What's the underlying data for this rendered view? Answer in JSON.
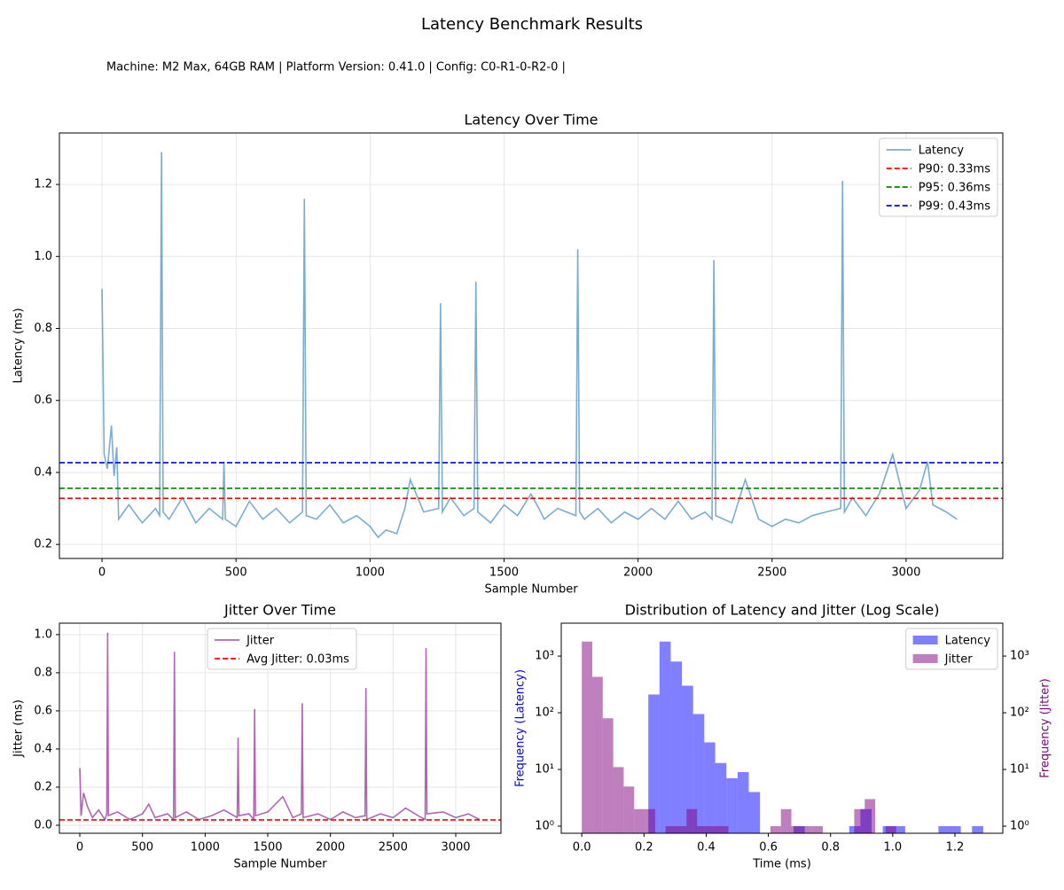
{
  "header": {
    "title": "Latency Benchmark Results",
    "subtitle": "Machine: M2 Max, 64GB RAM | Platform Version: 0.41.0 | Config: C0-R1-0-R2-0 |"
  },
  "chart_data": [
    {
      "type": "line",
      "title": "Latency Over Time",
      "xlabel": "Sample Number",
      "ylabel": "Latency (ms)",
      "x": [
        0,
        8,
        20,
        35,
        45,
        55,
        62,
        100,
        150,
        200,
        215,
        222,
        228,
        250,
        300,
        350,
        400,
        450,
        455,
        460,
        500,
        550,
        600,
        650,
        700,
        748,
        755,
        762,
        800,
        850,
        900,
        950,
        1000,
        1030,
        1060,
        1100,
        1130,
        1150,
        1200,
        1256,
        1263,
        1270,
        1300,
        1350,
        1388,
        1395,
        1402,
        1450,
        1500,
        1550,
        1600,
        1630,
        1650,
        1700,
        1768,
        1775,
        1782,
        1800,
        1850,
        1900,
        1950,
        2000,
        2050,
        2100,
        2150,
        2200,
        2250,
        2276,
        2283,
        2290,
        2350,
        2400,
        2450,
        2500,
        2550,
        2600,
        2650,
        2700,
        2756,
        2763,
        2770,
        2800,
        2850,
        2900,
        2950,
        3000,
        3050,
        3080,
        3100,
        3150,
        3190
      ],
      "series": [
        {
          "name": "Latency",
          "color": "#1f77b4",
          "alpha": 0.6,
          "values": [
            0.91,
            0.45,
            0.41,
            0.53,
            0.39,
            0.47,
            0.27,
            0.31,
            0.26,
            0.3,
            0.28,
            1.29,
            0.29,
            0.27,
            0.33,
            0.26,
            0.3,
            0.27,
            0.43,
            0.27,
            0.25,
            0.32,
            0.27,
            0.3,
            0.26,
            0.29,
            1.16,
            0.28,
            0.27,
            0.31,
            0.26,
            0.28,
            0.25,
            0.22,
            0.24,
            0.23,
            0.3,
            0.38,
            0.29,
            0.3,
            0.87,
            0.29,
            0.33,
            0.28,
            0.3,
            0.93,
            0.29,
            0.26,
            0.31,
            0.28,
            0.34,
            0.3,
            0.27,
            0.3,
            0.28,
            1.02,
            0.29,
            0.27,
            0.3,
            0.26,
            0.29,
            0.27,
            0.3,
            0.27,
            0.32,
            0.27,
            0.29,
            0.27,
            0.99,
            0.28,
            0.26,
            0.38,
            0.27,
            0.25,
            0.27,
            0.26,
            0.28,
            0.29,
            0.3,
            1.21,
            0.29,
            0.33,
            0.28,
            0.34,
            0.45,
            0.3,
            0.35,
            0.43,
            0.31,
            0.29,
            0.27
          ]
        }
      ],
      "reference_lines": [
        {
          "name": "P90: 0.33ms",
          "value": 0.328,
          "color": "red"
        },
        {
          "name": "P95: 0.36ms",
          "value": 0.356,
          "color": "green"
        },
        {
          "name": "P99: 0.43ms",
          "value": 0.427,
          "color": "blue"
        }
      ],
      "xlim": [
        -159,
        3361
      ],
      "ylim": [
        0.161,
        1.343
      ],
      "xticks": [
        0,
        500,
        1000,
        1500,
        2000,
        2500,
        3000
      ],
      "yticks": [
        0.2,
        0.4,
        0.6,
        0.8,
        {
          "value": 1,
          "label": "1.0"
        },
        1.2
      ],
      "grid": true,
      "legend": "upper right"
    },
    {
      "type": "line",
      "title": "Jitter Over Time",
      "xlabel": "Sample Number",
      "ylabel": "Jitter (ms)",
      "x": [
        0,
        10,
        30,
        60,
        100,
        150,
        200,
        215,
        222,
        228,
        300,
        400,
        500,
        550,
        600,
        700,
        748,
        755,
        762,
        850,
        950,
        1050,
        1150,
        1256,
        1263,
        1270,
        1350,
        1388,
        1395,
        1402,
        1500,
        1620,
        1700,
        1768,
        1775,
        1782,
        1900,
        2000,
        2100,
        2200,
        2276,
        2283,
        2290,
        2400,
        2500,
        2600,
        2700,
        2756,
        2763,
        2770,
        2900,
        3000,
        3100,
        3190
      ],
      "series": [
        {
          "name": "Jitter",
          "color": "purple",
          "alpha": 0.6,
          "values": [
            0.3,
            0.05,
            0.17,
            0.1,
            0.04,
            0.08,
            0.03,
            0.06,
            1.01,
            0.05,
            0.07,
            0.03,
            0.06,
            0.11,
            0.04,
            0.06,
            0.03,
            0.91,
            0.04,
            0.07,
            0.03,
            0.05,
            0.08,
            0.04,
            0.46,
            0.05,
            0.06,
            0.03,
            0.61,
            0.05,
            0.07,
            0.15,
            0.04,
            0.06,
            0.64,
            0.04,
            0.06,
            0.03,
            0.07,
            0.04,
            0.05,
            0.72,
            0.03,
            0.06,
            0.04,
            0.09,
            0.05,
            0.03,
            0.93,
            0.06,
            0.07,
            0.04,
            0.06,
            0.03
          ]
        }
      ],
      "reference_lines": [
        {
          "name": "Avg Jitter: 0.03ms",
          "value": 0.028,
          "color": "red"
        }
      ],
      "xlim": [
        -163,
        3361
      ],
      "ylim": [
        -0.042,
        1.06
      ],
      "xticks": [
        0,
        500,
        1000,
        1500,
        2000,
        2500,
        3000
      ],
      "yticks": [
        {
          "value": 0,
          "label": "0.0"
        },
        0.2,
        0.4,
        0.6,
        0.8,
        {
          "value": 1,
          "label": "1.0"
        }
      ],
      "grid": true,
      "legend": "upper center"
    },
    {
      "type": "histogram",
      "title": "Distribution of Latency and Jitter (Log Scale)",
      "xlabel": "Time (ms)",
      "ylabel": "Frequency (Latency)",
      "y2label": "Frequency (Jitter)",
      "ylabel_color": "blue",
      "y2label_color": "purple",
      "series": [
        {
          "name": "Latency",
          "color": "blue",
          "alpha": 0.5,
          "bins": [
            0.214,
            0.25,
            0.286,
            0.322,
            0.358,
            0.394,
            0.429,
            0.465,
            0.501,
            0.537,
            0.573,
            0.609,
            0.645,
            0.681,
            0.717,
            0.752,
            0.788,
            0.824,
            0.86,
            0.896,
            0.932,
            0.968,
            1.004,
            1.04,
            1.076,
            1.112,
            1.147,
            1.183,
            1.219,
            1.255,
            1.291
          ],
          "values": [
            210,
            1800,
            800,
            300,
            95,
            30,
            13,
            7,
            9,
            4,
            0,
            0,
            0,
            1,
            0,
            0,
            0,
            0,
            1,
            2,
            0,
            1,
            1,
            0,
            0,
            0,
            1,
            1,
            0,
            1
          ]
        },
        {
          "name": "Jitter",
          "color": "purple",
          "alpha": 0.5,
          "axis": "y2",
          "bins": [
            0,
            0.0337,
            0.0674,
            0.1011,
            0.1348,
            0.1685,
            0.2022,
            0.2359,
            0.2696,
            0.3033,
            0.337,
            0.3707,
            0.4044,
            0.4381,
            0.4718,
            0.5055,
            0.5392,
            0.5729,
            0.6066,
            0.6403,
            0.674,
            0.7077,
            0.7414,
            0.7751,
            0.8088,
            0.8425,
            0.8762,
            0.9099,
            0.9436,
            0.9773,
            1.011
          ],
          "values": [
            1800,
            430,
            80,
            11,
            5,
            2,
            2,
            0,
            1,
            1,
            2,
            1,
            1,
            1,
            0,
            0,
            0,
            0,
            1,
            2,
            1,
            1,
            1,
            0,
            0,
            0,
            2,
            3,
            0,
            1
          ]
        }
      ],
      "log_scale": true,
      "xlim": [
        -0.066,
        1.354
      ],
      "ylim": [
        0.75,
        3800
      ],
      "y2lim": [
        0.75,
        3800
      ],
      "xticks": [
        {
          "value": 0,
          "label": "0.0"
        },
        0.2,
        0.4,
        0.6,
        0.8,
        {
          "value": 1,
          "label": "1.0"
        },
        1.2
      ],
      "yticks": [
        {
          "value": 1,
          "label": "10⁰"
        },
        {
          "value": 10,
          "label": "10¹"
        },
        {
          "value": 100,
          "label": "10²"
        },
        {
          "value": 1000,
          "label": "10³"
        }
      ],
      "y2ticks": [
        {
          "value": 1,
          "label": "10⁰"
        },
        {
          "value": 10,
          "label": "10¹"
        },
        {
          "value": 100,
          "label": "10²"
        },
        {
          "value": 1000,
          "label": "10³"
        }
      ],
      "grid": false,
      "legend": "upper right"
    }
  ]
}
